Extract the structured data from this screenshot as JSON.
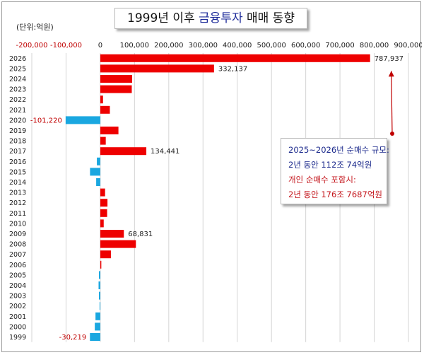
{
  "title": {
    "part1": "1999년 이후 ",
    "part2": "금융투자",
    "part3": " 매매 동향"
  },
  "unit_label": "(단위:억원)",
  "callout": {
    "line1": "2025~2026년 순매수 규모:",
    "line2": "2년 동안 112조 74억원",
    "line3": "개인 순매수 포함시:",
    "line4": "2년 동안 176조 7687억원"
  },
  "colors": {
    "positive": "#ee0000",
    "negative": "#1aa7e0",
    "grid": "#d4d4d4",
    "neg_tick_label": "#c00000",
    "callout_arrow": "#c00000"
  },
  "chart_data": {
    "type": "bar",
    "orientation": "horizontal",
    "xlim": [
      -200000,
      900000
    ],
    "x_ticks": [
      -200000,
      -100000,
      0,
      100000,
      200000,
      300000,
      400000,
      500000,
      600000,
      700000,
      800000,
      900000
    ],
    "x_tick_labels": [
      "-200,000",
      "-100,000",
      "0",
      "100,000",
      "200,000",
      "300,000",
      "400,000",
      "500,000",
      "600,000",
      "700,000",
      "800,000",
      "900,000"
    ],
    "grid": true,
    "categories": [
      "2026",
      "2025",
      "2024",
      "2023",
      "2022",
      "2021",
      "2020",
      "2019",
      "2018",
      "2017",
      "2016",
      "2015",
      "2014",
      "2013",
      "2012",
      "2011",
      "2010",
      "2009",
      "2008",
      "2007",
      "2006",
      "2005",
      "2004",
      "2003",
      "2002",
      "2001",
      "2000",
      "1999"
    ],
    "values": [
      787937,
      332137,
      93000,
      92000,
      8000,
      28000,
      -101220,
      53000,
      16000,
      134441,
      -10000,
      -30000,
      -12000,
      14000,
      21000,
      20000,
      10000,
      68831,
      104000,
      31000,
      3000,
      -4000,
      -5000,
      -4000,
      -2000,
      -14000,
      -16000,
      -30219
    ],
    "data_labels": [
      {
        "category": "2026",
        "text": "787,937"
      },
      {
        "category": "2025",
        "text": "332,137"
      },
      {
        "category": "2020",
        "text": "-101,220"
      },
      {
        "category": "2017",
        "text": "134,441"
      },
      {
        "category": "2009",
        "text": "68,831"
      },
      {
        "category": "1999",
        "text": "-30,219"
      }
    ]
  }
}
